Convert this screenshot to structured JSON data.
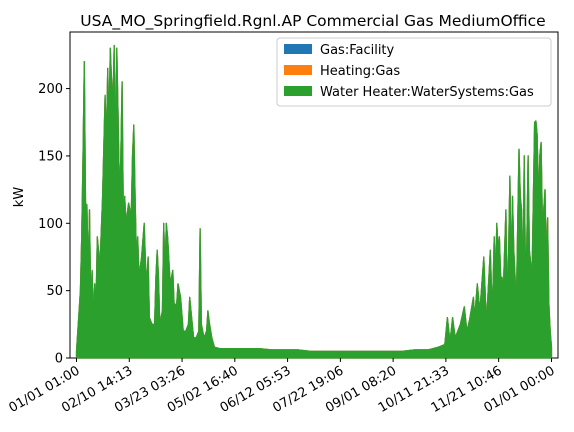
{
  "chart_data": {
    "type": "area",
    "title": "USA_MO_Springfield.Rgnl.AP Commercial Gas MediumOffice",
    "ylabel": "kW",
    "xlabel": "",
    "x_tick_labels": [
      "01/01 01:00",
      "02/10 14:13",
      "03/23 03:26",
      "05/02 16:40",
      "06/12 05:53",
      "07/22 19:06",
      "09/01 08:20",
      "10/11 21:33",
      "11/21 10:46",
      "01/01 00:00"
    ],
    "x_unit": "day of year",
    "x_ticks_days": [
      0,
      40.55,
      81.1,
      121.65,
      162.2,
      202.75,
      243.3,
      283.85,
      324.4,
      365
    ],
    "xlim": [
      -5,
      370
    ],
    "y_ticks": [
      0,
      50,
      100,
      150,
      200
    ],
    "ylim": [
      0,
      242
    ],
    "grid": false,
    "legend_position": "top-right",
    "series": [
      {
        "name": "Gas:Facility",
        "color": "#1f77b4"
      },
      {
        "name": "Heating:Gas",
        "color": "#ff7f0e"
      },
      {
        "name": "Water Heater:WaterSystems:Gas",
        "color": "#2ca02c"
      }
    ],
    "envelope": [
      [
        0,
        5
      ],
      [
        3,
        50
      ],
      [
        4,
        90
      ],
      [
        5,
        150
      ],
      [
        6,
        220
      ],
      [
        7,
        110
      ],
      [
        8,
        114
      ],
      [
        9,
        65
      ],
      [
        10,
        110
      ],
      [
        11,
        40
      ],
      [
        12,
        65
      ],
      [
        13,
        30
      ],
      [
        14,
        55
      ],
      [
        15,
        40
      ],
      [
        16,
        90
      ],
      [
        18,
        68
      ],
      [
        20,
        118
      ],
      [
        22,
        195
      ],
      [
        23,
        160
      ],
      [
        24,
        215
      ],
      [
        25,
        175
      ],
      [
        26,
        230
      ],
      [
        27,
        205
      ],
      [
        28,
        190
      ],
      [
        29,
        232
      ],
      [
        30,
        150
      ],
      [
        31,
        230
      ],
      [
        32,
        180
      ],
      [
        33,
        120
      ],
      [
        34,
        150
      ],
      [
        35,
        205
      ],
      [
        36,
        100
      ],
      [
        37,
        120
      ],
      [
        38,
        100
      ],
      [
        40,
        115
      ],
      [
        42,
        105
      ],
      [
        43,
        150
      ],
      [
        44,
        173
      ],
      [
        45,
        120
      ],
      [
        46,
        75
      ],
      [
        47,
        90
      ],
      [
        48,
        60
      ],
      [
        50,
        75
      ],
      [
        52,
        100
      ],
      [
        53,
        70
      ],
      [
        54,
        55
      ],
      [
        55,
        75
      ],
      [
        56,
        30
      ],
      [
        58,
        25
      ],
      [
        60,
        25
      ],
      [
        61,
        60
      ],
      [
        62,
        80
      ],
      [
        63,
        60
      ],
      [
        64,
        25
      ],
      [
        66,
        35
      ],
      [
        67,
        100
      ],
      [
        68,
        65
      ],
      [
        69,
        100
      ],
      [
        70,
        90
      ],
      [
        72,
        55
      ],
      [
        74,
        65
      ],
      [
        75,
        40
      ],
      [
        77,
        40
      ],
      [
        78,
        55
      ],
      [
        80,
        45
      ],
      [
        82,
        20
      ],
      [
        84,
        20
      ],
      [
        86,
        25
      ],
      [
        87,
        45
      ],
      [
        88,
        35
      ],
      [
        90,
        15
      ],
      [
        92,
        15
      ],
      [
        94,
        20
      ],
      [
        95,
        96
      ],
      [
        96,
        25
      ],
      [
        98,
        15
      ],
      [
        100,
        20
      ],
      [
        101,
        35
      ],
      [
        102,
        27
      ],
      [
        104,
        15
      ],
      [
        106,
        8
      ],
      [
        110,
        7
      ],
      [
        115,
        7
      ],
      [
        120,
        7
      ],
      [
        130,
        7
      ],
      [
        140,
        7
      ],
      [
        150,
        6
      ],
      [
        160,
        6
      ],
      [
        170,
        6
      ],
      [
        180,
        5
      ],
      [
        190,
        5
      ],
      [
        200,
        5
      ],
      [
        210,
        5
      ],
      [
        220,
        5
      ],
      [
        230,
        5
      ],
      [
        240,
        5
      ],
      [
        250,
        5
      ],
      [
        260,
        6
      ],
      [
        270,
        6
      ],
      [
        278,
        8
      ],
      [
        283,
        10
      ],
      [
        285,
        30
      ],
      [
        287,
        12
      ],
      [
        289,
        30
      ],
      [
        291,
        15
      ],
      [
        295,
        25
      ],
      [
        298,
        38
      ],
      [
        300,
        20
      ],
      [
        302,
        28
      ],
      [
        305,
        45
      ],
      [
        306,
        30
      ],
      [
        308,
        55
      ],
      [
        310,
        35
      ],
      [
        313,
        75
      ],
      [
        315,
        25
      ],
      [
        318,
        80
      ],
      [
        319,
        50
      ],
      [
        320,
        50
      ],
      [
        321,
        90
      ],
      [
        322,
        60
      ],
      [
        323,
        100
      ],
      [
        324,
        80
      ],
      [
        325,
        90
      ],
      [
        326,
        60
      ],
      [
        327,
        60
      ],
      [
        328,
        50
      ],
      [
        330,
        110
      ],
      [
        331,
        40
      ],
      [
        332,
        75
      ],
      [
        333,
        135
      ],
      [
        334,
        65
      ],
      [
        335,
        120
      ],
      [
        336,
        80
      ],
      [
        337,
        60
      ],
      [
        338,
        40
      ],
      [
        339,
        100
      ],
      [
        340,
        155
      ],
      [
        341,
        120
      ],
      [
        342,
        110
      ],
      [
        343,
        55
      ],
      [
        344,
        150
      ],
      [
        345,
        60
      ],
      [
        346,
        85
      ],
      [
        347,
        150
      ],
      [
        348,
        80
      ],
      [
        350,
        60
      ],
      [
        352,
        175
      ],
      [
        353,
        176
      ],
      [
        354,
        165
      ],
      [
        355,
        115
      ],
      [
        356,
        150
      ],
      [
        357,
        160
      ],
      [
        358,
        100
      ],
      [
        359,
        110
      ],
      [
        360,
        125
      ],
      [
        361,
        70
      ],
      [
        362,
        104
      ],
      [
        363,
        40
      ],
      [
        364,
        20
      ],
      [
        365,
        8
      ]
    ]
  }
}
